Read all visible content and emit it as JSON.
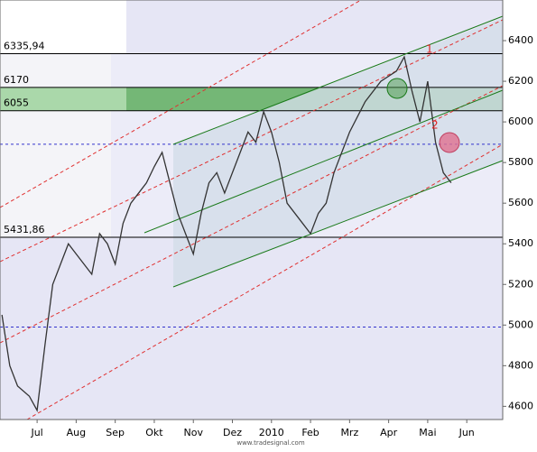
{
  "chart_data": {
    "type": "line",
    "x": [
      -0.9,
      -0.7,
      -0.5,
      -0.2,
      0,
      0.2,
      0.4,
      0.6,
      0.8,
      1,
      1.2,
      1.4,
      1.6,
      1.8,
      2,
      2.2,
      2.4,
      2.6,
      2.8,
      3,
      3.2,
      3.4,
      3.6,
      3.8,
      4,
      4.2,
      4.4,
      4.6,
      4.8,
      5,
      5.2,
      5.4,
      5.6,
      5.8,
      6,
      6.2,
      6.4,
      6.6,
      6.8,
      7,
      7.2,
      7.4,
      7.6,
      7.8,
      8,
      8.4,
      8.8,
      9.2,
      9.4,
      9.6,
      9.8,
      10,
      10.2,
      10.4,
      10.6
    ],
    "values": [
      5050,
      4800,
      4700,
      4650,
      4580,
      4900,
      5200,
      5300,
      5400,
      5350,
      5300,
      5250,
      5450,
      5400,
      5300,
      5500,
      5600,
      5650,
      5700,
      5780,
      5850,
      5700,
      5550,
      5450,
      5350,
      5550,
      5700,
      5750,
      5650,
      5750,
      5850,
      5950,
      5900,
      6050,
      5950,
      5800,
      5600,
      5550,
      5500,
      5450,
      5550,
      5600,
      5750,
      5850,
      5950,
      6100,
      6200,
      6250,
      6320,
      6150,
      6000,
      6200,
      5900,
      5750,
      5700
    ],
    "color": "#333333",
    "xlim": [
      -0.95,
      11.92
    ],
    "xticks": [
      {
        "value": 0,
        "label": "Jul"
      },
      {
        "value": 1,
        "label": "Aug"
      },
      {
        "value": 2,
        "label": "Sep"
      },
      {
        "value": 3,
        "label": "Okt"
      },
      {
        "value": 4,
        "label": "Nov"
      },
      {
        "value": 5,
        "label": "Dez"
      },
      {
        "value": 6,
        "label": "2010"
      },
      {
        "value": 7,
        "label": "Feb"
      },
      {
        "value": 8,
        "label": "Mrz"
      },
      {
        "value": 9,
        "label": "Apr"
      },
      {
        "value": 10,
        "label": "Mai"
      },
      {
        "value": 11,
        "label": "Jun"
      }
    ],
    "ylim": [
      4535,
      6600
    ],
    "yticks": [
      4600,
      4800,
      5000,
      5200,
      5400,
      5600,
      5800,
      6000,
      6200,
      6400
    ],
    "levels": [
      {
        "value": 6335.94,
        "label": "6335,94"
      },
      6170,
      6055,
      {
        "value": 5431.86,
        "label": "5431,86"
      }
    ],
    "band": [
      6055,
      6170
    ],
    "dashed_levels": [
      5890,
      4990
    ],
    "annotations": [
      "1",
      "2"
    ],
    "source": "www.tradesignal.com"
  }
}
